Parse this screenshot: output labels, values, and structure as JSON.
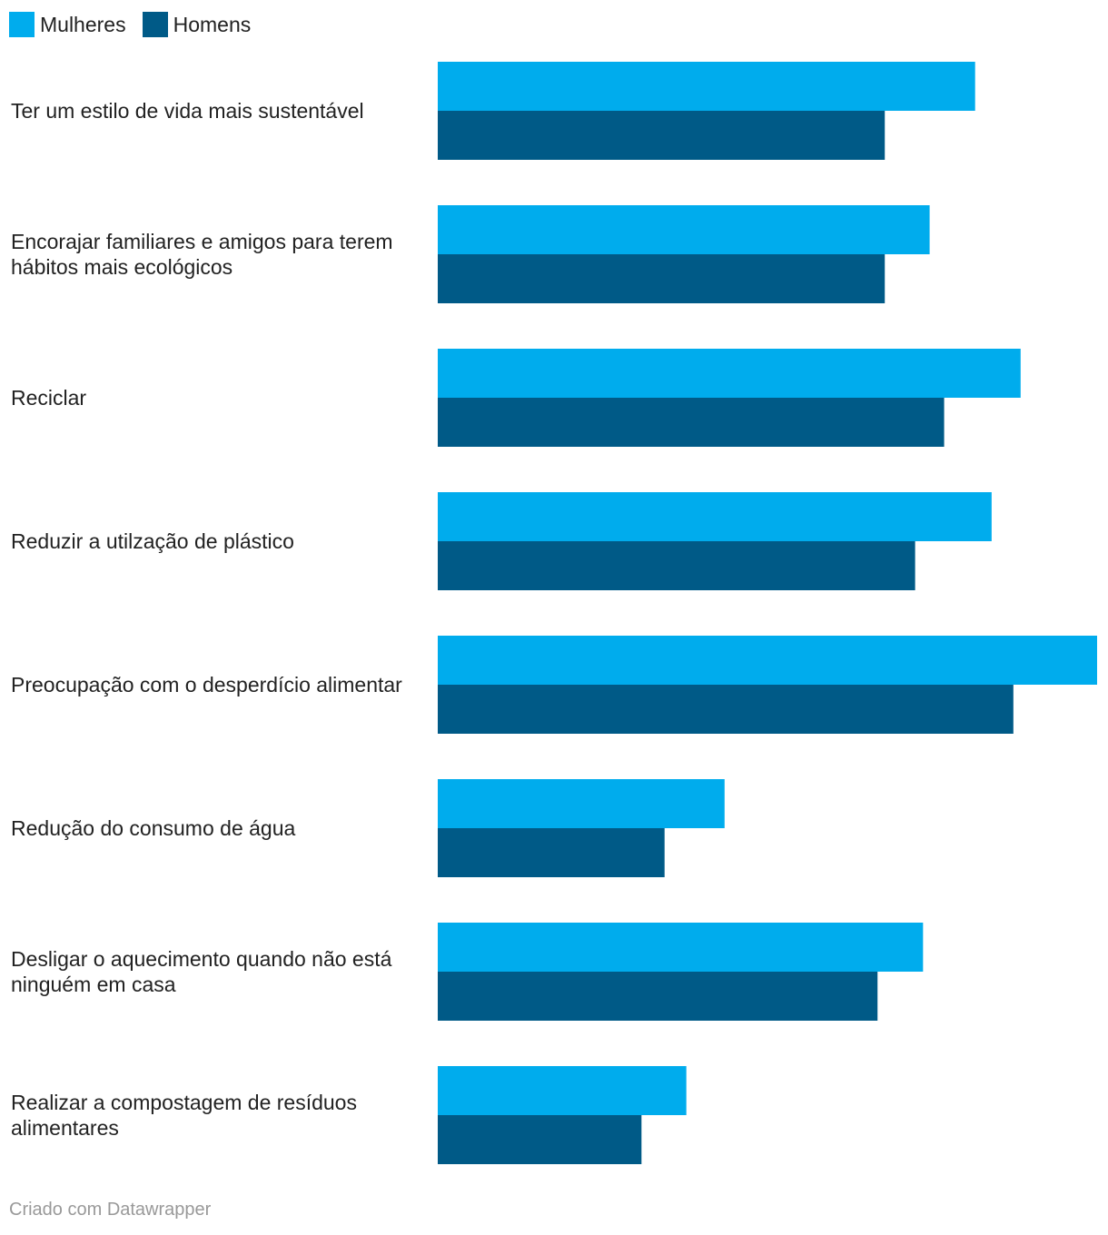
{
  "chart_data": {
    "type": "bar",
    "orientation": "horizontal",
    "title": "",
    "xlabel": "",
    "ylabel": "",
    "legend_position": "top-left",
    "grid": false,
    "xlim": [
      0,
      100
    ],
    "categories": [
      [
        "Ter um estilo de vida mais sustentável"
      ],
      [
        "Encorajar familiares e amigos para terem",
        "hábitos mais ecológicos"
      ],
      [
        "Reciclar"
      ],
      [
        "Reduzir a utilzação de plástico"
      ],
      [
        "Preocupação com o desperdício alimentar"
      ],
      [
        "Redução do consumo de água"
      ],
      [
        "Desligar o aquecimento quando não está",
        "ninguém em casa"
      ],
      [
        "Realizar a compostagem de resíduos",
        "alimentares"
      ]
    ],
    "series": [
      {
        "name": "Mulheres",
        "color": "#00aced",
        "values": [
          81.5,
          74.6,
          88.4,
          84.0,
          100.0,
          43.5,
          73.6,
          37.7
        ]
      },
      {
        "name": "Homens",
        "color": "#005a87",
        "values": [
          67.8,
          67.8,
          76.8,
          72.4,
          87.3,
          34.4,
          66.7,
          30.9
        ]
      }
    ]
  },
  "footer": {
    "credit": "Criado com Datawrapper"
  }
}
